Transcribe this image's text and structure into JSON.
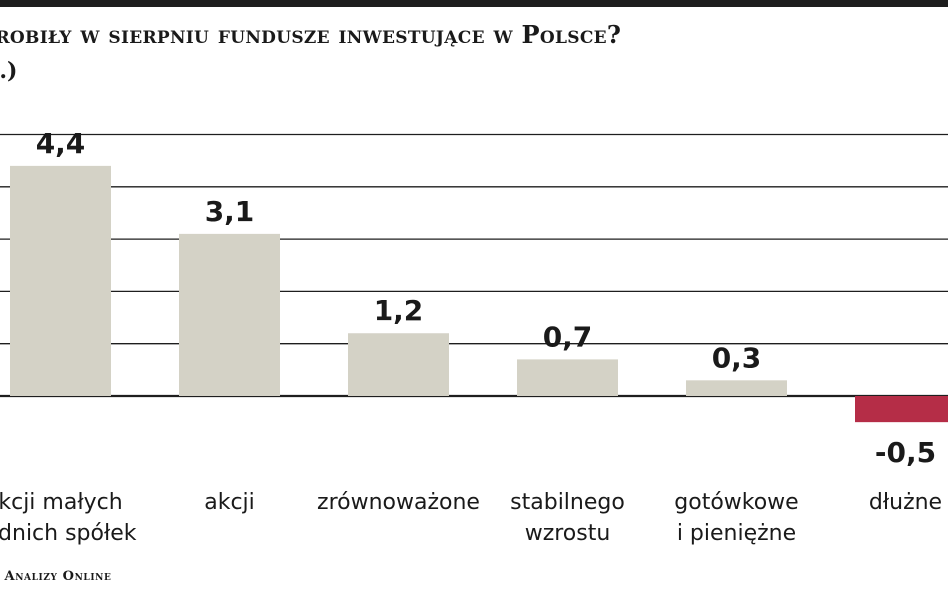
{
  "header": {
    "title": "arobiły w sierpniu fundusze inwestujące w Polsce?",
    "subtitle": "c.)"
  },
  "footer": {
    "source": ": Analizy Online"
  },
  "chart_data": {
    "type": "bar",
    "title": "arobiły w sierpniu fundusze inwestujące w Polsce?",
    "xlabel": "",
    "ylabel": "",
    "categories": [
      [
        "kcji małych",
        "ednich spółek"
      ],
      [
        "akcji"
      ],
      [
        "zrównoważone"
      ],
      [
        "stabilnego",
        "wzrostu"
      ],
      [
        "gotówkowe",
        "i pieniężne"
      ],
      [
        "dłużne"
      ]
    ],
    "values": [
      4.4,
      3.1,
      1.2,
      0.7,
      0.3,
      -0.5
    ],
    "value_labels": [
      "4,4",
      "3,1",
      "1,2",
      "0,7",
      "0,3",
      "-0,5"
    ],
    "ylim": [
      -1,
      5
    ],
    "grid": true,
    "colors": {
      "positive": "#d4d2c6",
      "negative": "#b52d47",
      "grid": "#1e1e1e"
    }
  }
}
